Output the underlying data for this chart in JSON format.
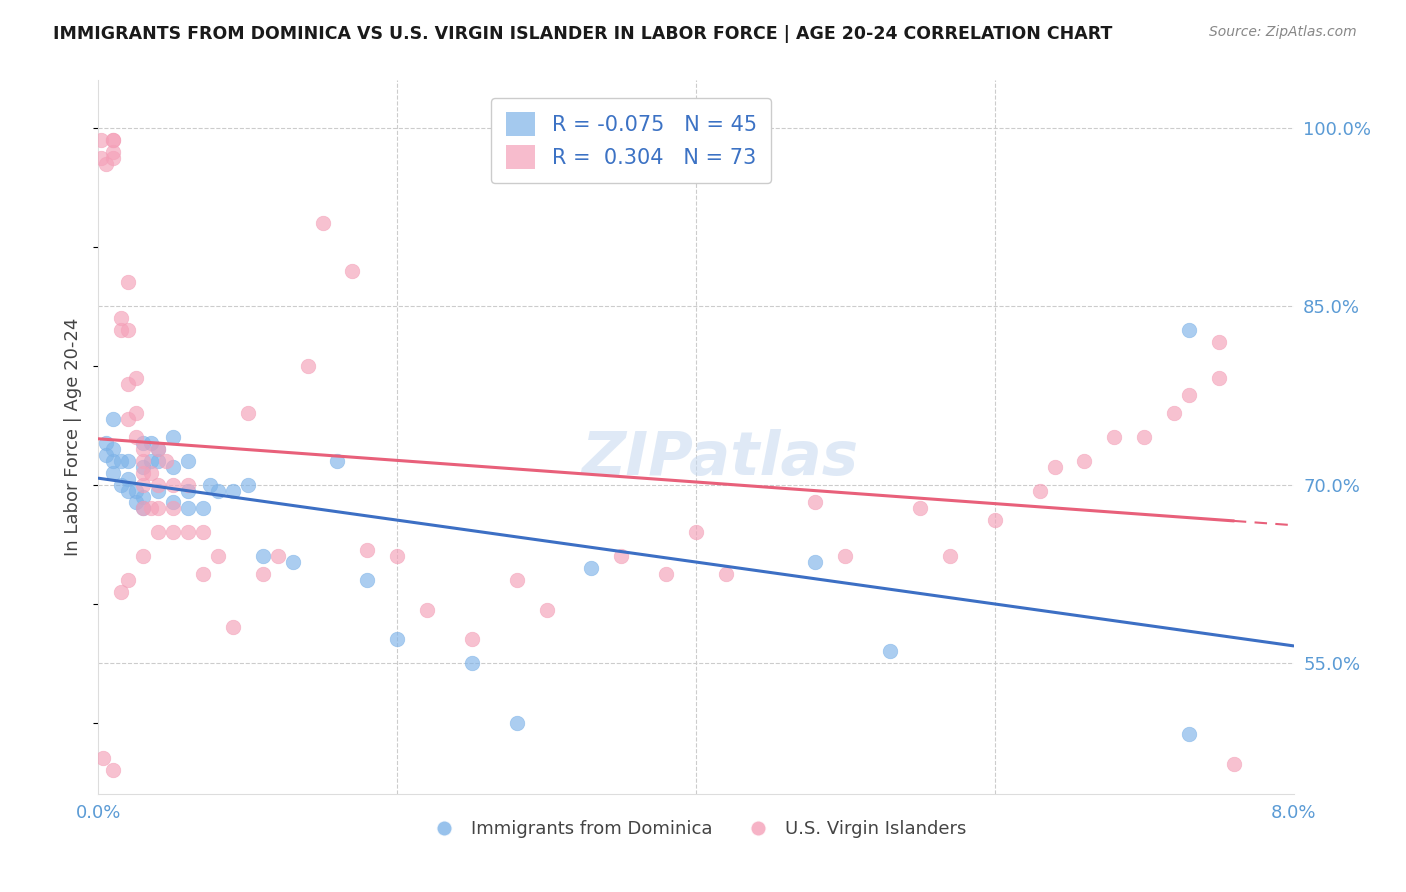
{
  "title": "IMMIGRANTS FROM DOMINICA VS U.S. VIRGIN ISLANDER IN LABOR FORCE | AGE 20-24 CORRELATION CHART",
  "source": "Source: ZipAtlas.com",
  "ylabel": "In Labor Force | Age 20-24",
  "legend_blue_r": "-0.075",
  "legend_blue_n": "45",
  "legend_pink_r": "0.304",
  "legend_pink_n": "73",
  "legend_label_blue": "Immigrants from Dominica",
  "legend_label_pink": "U.S. Virgin Islanders",
  "blue_color": "#7eb3e8",
  "pink_color": "#f4a0b8",
  "blue_line_color": "#3c6fc4",
  "pink_line_color": "#e8607a",
  "watermark": "ZIPatlas",
  "xmin": 0.0,
  "xmax": 0.08,
  "ymin": 0.44,
  "ymax": 1.04,
  "ytick_positions": [
    0.55,
    0.7,
    0.85,
    1.0
  ],
  "ytick_labels": [
    "55.0%",
    "70.0%",
    "85.0%",
    "100.0%"
  ],
  "blue_x": [
    0.0005,
    0.0005,
    0.001,
    0.001,
    0.001,
    0.001,
    0.0015,
    0.0015,
    0.002,
    0.002,
    0.002,
    0.0025,
    0.0025,
    0.003,
    0.003,
    0.003,
    0.003,
    0.0035,
    0.0035,
    0.004,
    0.004,
    0.004,
    0.005,
    0.005,
    0.005,
    0.006,
    0.006,
    0.006,
    0.007,
    0.0075,
    0.008,
    0.009,
    0.01,
    0.011,
    0.013,
    0.016,
    0.018,
    0.02,
    0.025,
    0.028,
    0.033,
    0.048,
    0.053,
    0.073,
    0.073
  ],
  "blue_y": [
    0.725,
    0.735,
    0.71,
    0.72,
    0.73,
    0.755,
    0.7,
    0.72,
    0.695,
    0.705,
    0.72,
    0.685,
    0.695,
    0.68,
    0.69,
    0.715,
    0.735,
    0.72,
    0.735,
    0.695,
    0.72,
    0.73,
    0.685,
    0.715,
    0.74,
    0.68,
    0.695,
    0.72,
    0.68,
    0.7,
    0.695,
    0.695,
    0.7,
    0.64,
    0.635,
    0.72,
    0.62,
    0.57,
    0.55,
    0.5,
    0.63,
    0.635,
    0.56,
    0.49,
    0.83
  ],
  "pink_x": [
    0.0002,
    0.0002,
    0.0005,
    0.001,
    0.001,
    0.001,
    0.001,
    0.0015,
    0.0015,
    0.002,
    0.002,
    0.002,
    0.002,
    0.0025,
    0.0025,
    0.0025,
    0.003,
    0.003,
    0.003,
    0.003,
    0.003,
    0.0035,
    0.0035,
    0.004,
    0.004,
    0.004,
    0.0045,
    0.005,
    0.005,
    0.005,
    0.006,
    0.006,
    0.007,
    0.007,
    0.008,
    0.009,
    0.01,
    0.011,
    0.012,
    0.014,
    0.015,
    0.017,
    0.018,
    0.02,
    0.022,
    0.025,
    0.028,
    0.03,
    0.035,
    0.038,
    0.04,
    0.042,
    0.048,
    0.05,
    0.055,
    0.057,
    0.06,
    0.063,
    0.064,
    0.066,
    0.068,
    0.07,
    0.072,
    0.073,
    0.075,
    0.075,
    0.076,
    0.0003,
    0.001,
    0.0015,
    0.002,
    0.003,
    0.004
  ],
  "pink_y": [
    0.975,
    0.99,
    0.97,
    0.975,
    0.98,
    0.99,
    0.99,
    0.83,
    0.84,
    0.755,
    0.785,
    0.83,
    0.87,
    0.74,
    0.76,
    0.79,
    0.68,
    0.7,
    0.71,
    0.72,
    0.73,
    0.68,
    0.71,
    0.68,
    0.7,
    0.73,
    0.72,
    0.66,
    0.68,
    0.7,
    0.66,
    0.7,
    0.625,
    0.66,
    0.64,
    0.58,
    0.76,
    0.625,
    0.64,
    0.8,
    0.92,
    0.88,
    0.645,
    0.64,
    0.595,
    0.57,
    0.62,
    0.595,
    0.64,
    0.625,
    0.66,
    0.625,
    0.685,
    0.64,
    0.68,
    0.64,
    0.67,
    0.695,
    0.715,
    0.72,
    0.74,
    0.74,
    0.76,
    0.775,
    0.79,
    0.82,
    0.465,
    0.47,
    0.46,
    0.61,
    0.62,
    0.64,
    0.66
  ]
}
